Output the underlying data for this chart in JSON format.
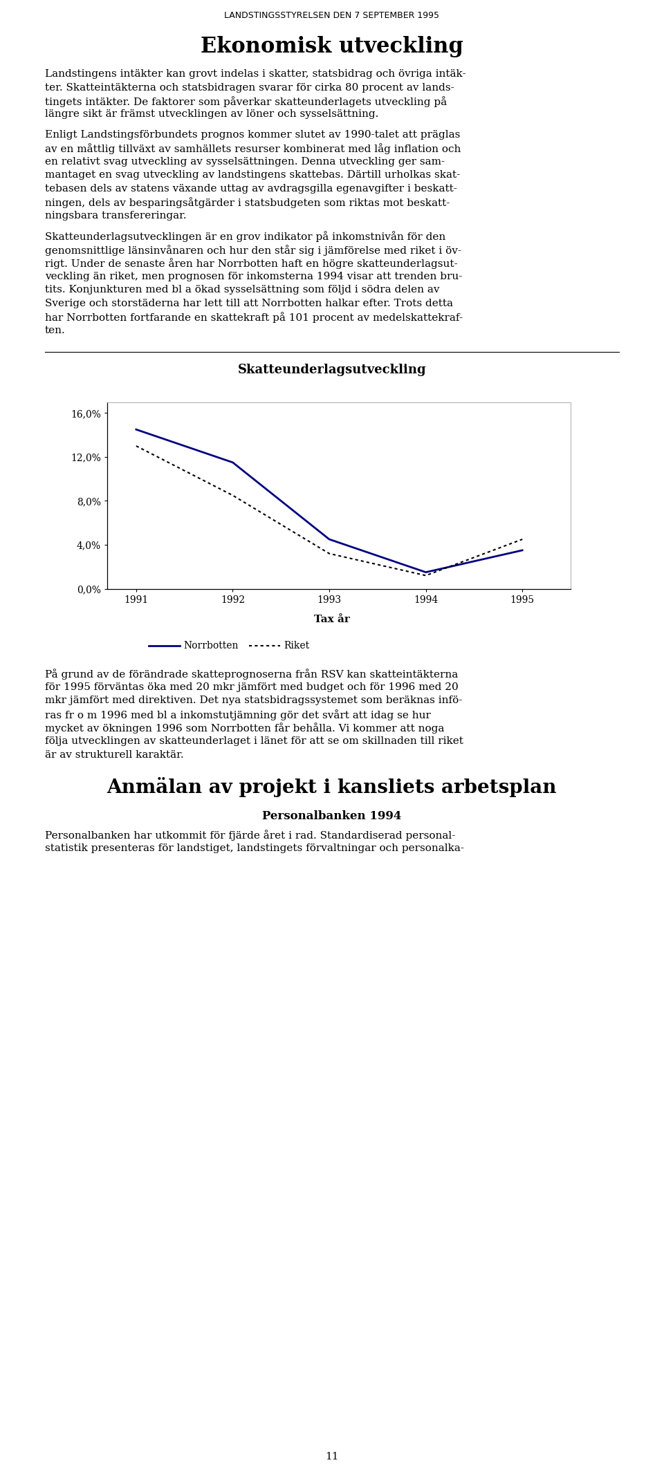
{
  "header": "LANDSTINGSSTYRELSEN DEN 7 SEPTEMBER 1995",
  "title1": "Ekonomisk utveckling",
  "para1_lines": [
    "Landstingens intäkter kan grovt indelas i skatter, statsbidrag och övriga intäk-",
    "ter. Skatteintäkterna och statsbidragen svarar för cirka 80 procent av lands-",
    "tingets intäkter. De faktorer som påverkar skatteunderlagets utveckling på",
    "längre sikt är främst utvecklingen av löner och sysselsättning."
  ],
  "para2_lines": [
    "Enligt Landstingsförbundets prognos kommer slutet av 1990-talet att präglas",
    "av en måttlig tillväxt av samhällets resurser kombinerat med låg inflation och",
    "en relativt svag utveckling av sysselsättningen. Denna utveckling ger sam-",
    "mantaget en svag utveckling av landstingens skattebas. Därtill urholkas skat-",
    "tebasen dels av statens växande uttag av avdragsgilla egenavgifter i beskatt-",
    "ningen, dels av besparingsåtgärder i statsbudgeten som riktas mot beskatt-",
    "ningsbara transfereringar."
  ],
  "para3_lines": [
    "Skatteunderlagsutvecklingen är en grov indikator på inkomstnivån för den",
    "genomsnittlige länsinvånaren och hur den står sig i jämförelse med riket i öv-",
    "rigt. Under de senaste åren har Norrbotten haft en högre skatteunderlagsut-",
    "veckling än riket, men prognosen för inkomsterna 1994 visar att trenden bru-",
    "tits. Konjunkturen med bl a ökad sysselsättning som följd i södra delen av",
    "Sverige och storstäderna har lett till att Norrbotten halkar efter. Trots detta",
    "har Norrbotten fortfarande en skattekraft på 101 procent av medelskattekraf-",
    "ten."
  ],
  "chart_title": "Skatteunderlagsutveckling",
  "years": [
    1991,
    1992,
    1993,
    1994,
    1995
  ],
  "norrbotten": [
    14.5,
    11.5,
    4.5,
    1.5,
    3.5
  ],
  "riket": [
    13.0,
    8.5,
    3.2,
    1.2,
    4.5
  ],
  "ylabel_ticks": [
    "0,0%",
    "4,0%",
    "8,0%",
    "12,0%",
    "16,0%"
  ],
  "ylabel_values": [
    0.0,
    4.0,
    8.0,
    12.0,
    16.0
  ],
  "xlabel": "Tax år",
  "legend_norrbotten": "Norrbotten",
  "legend_riket": "Riket",
  "para4_lines": [
    "På grund av de förändrade skatteprognoserna från RSV kan skatteintäkterna",
    "för 1995 förväntas öka med 20 mkr jämfört med budget och för 1996 med 20",
    "mkr jämfört med direktiven. Det nya statsbidragssystemet som beräknas infö-",
    "ras fr o m 1996 med bl a inkomstutjämning gör det svårt att idag se hur",
    "mycket av ökningen 1996 som Norrbotten får behålla. Vi kommer att noga",
    "följa utvecklingen av skatteunderlaget i länet för att se om skillnaden till riket",
    "är av strukturell karaktär."
  ],
  "title2": "Anmälan av projekt i kansliets arbetsplan",
  "subtitle2": "Personalbanken 1994",
  "para5_lines": [
    "Personalbanken har utkommit för fjärde året i rad. Standardiserad personal-",
    "statistik presenteras för landstiget, landstingets förvaltningar och personalka-"
  ],
  "page_number": "11",
  "line_color": "#000080",
  "dot_color": "#000000",
  "bg_color": "#ffffff"
}
